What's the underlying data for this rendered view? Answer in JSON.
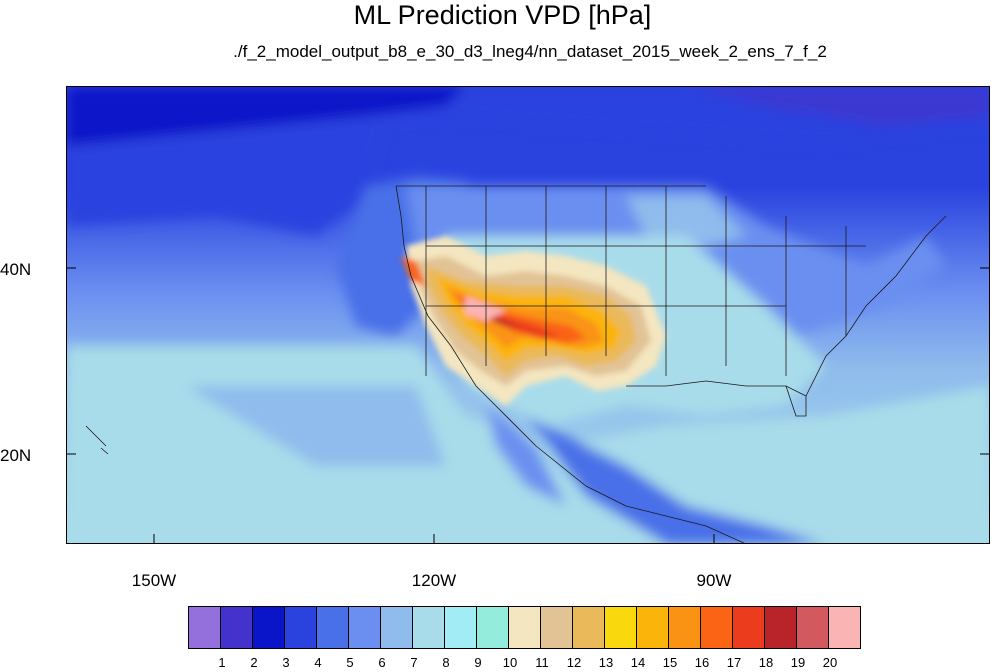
{
  "title": "ML Prediction VPD [hPa]",
  "subtitle": "./f_2_model_output_b8_e_30_d3_lneg4/nn_dataset_2015_week_2_ens_7_f_2",
  "lat_labels": [
    "40N",
    "20N"
  ],
  "lon_labels": [
    "150W",
    "120W",
    "90W"
  ],
  "colorbar": {
    "labels": [
      "1",
      "2",
      "3",
      "4",
      "5",
      "6",
      "7",
      "8",
      "9",
      "10",
      "11",
      "12",
      "13",
      "14",
      "15",
      "16",
      "17",
      "18",
      "19",
      "20"
    ],
    "colors": [
      "#9370db",
      "#4332cc",
      "#0a14c8",
      "#2a43df",
      "#4a70e8",
      "#6a8ff0",
      "#8fbcec",
      "#a9dcea",
      "#a2ecf5",
      "#94ecdc",
      "#f4e6c0",
      "#e2c396",
      "#eab95a",
      "#fad80e",
      "#fbb40a",
      "#fa9314",
      "#fa6414",
      "#eb3c1e",
      "#b9232a",
      "#d25a5f",
      "#fbb4b4"
    ]
  }
}
